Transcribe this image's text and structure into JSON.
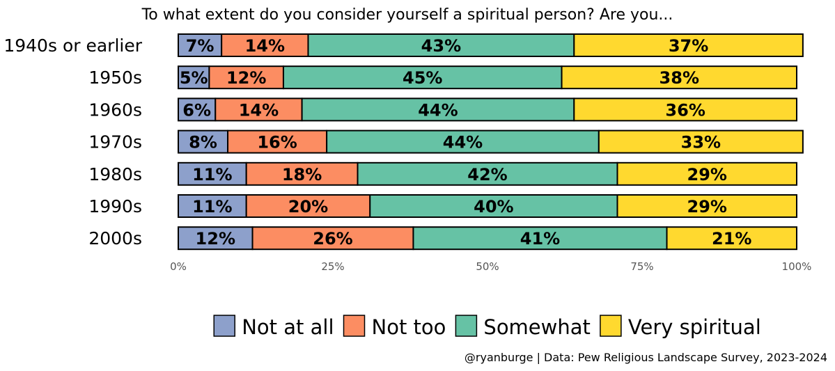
{
  "chart_data": {
    "type": "bar",
    "orientation": "horizontal",
    "stacked": true,
    "title": "To what extent do you consider yourself a spiritual person? Are you...",
    "categories": [
      "1940s or earlier",
      "1950s",
      "1960s",
      "1970s",
      "1980s",
      "1990s",
      "2000s"
    ],
    "series": [
      {
        "name": "Not at all",
        "color": "#8da0cb",
        "values": [
          7,
          5,
          6,
          8,
          11,
          11,
          12
        ],
        "labels": [
          "7%",
          "5%",
          "6%",
          "8%",
          "11%",
          "11%",
          "12%"
        ]
      },
      {
        "name": "Not too",
        "color": "#fc8d62",
        "values": [
          14,
          12,
          14,
          16,
          18,
          20,
          26
        ],
        "labels": [
          "14%",
          "12%",
          "14%",
          "16%",
          "18%",
          "20%",
          "26%"
        ]
      },
      {
        "name": "Somewhat",
        "color": "#66c2a5",
        "values": [
          43,
          45,
          44,
          44,
          42,
          40,
          41
        ],
        "labels": [
          "43%",
          "45%",
          "44%",
          "44%",
          "42%",
          "40%",
          "41%"
        ]
      },
      {
        "name": "Very spiritual",
        "color": "#ffd92f",
        "values": [
          37,
          38,
          36,
          33,
          29,
          29,
          21
        ],
        "labels": [
          "37%",
          "38%",
          "36%",
          "33%",
          "29%",
          "29%",
          "21%"
        ]
      }
    ],
    "xlim": [
      0,
      100
    ],
    "xticks": [
      0,
      25,
      50,
      75,
      100
    ],
    "xtick_labels": [
      "0%",
      "25%",
      "50%",
      "75%",
      "100%"
    ],
    "legend_position": "bottom",
    "grid": false,
    "caption": "@ryanburge | Data: Pew Religious Landscape Survey, 2023-2024"
  }
}
